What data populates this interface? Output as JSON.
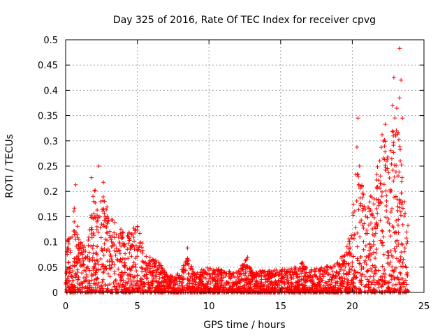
{
  "chart_data": {
    "type": "scatter",
    "title": "Day 325 of 2016, Rate Of TEC Index for receiver cpvg",
    "xlabel": "GPS time / hours",
    "ylabel": "ROTI / TECUs",
    "xlim": [
      0,
      25
    ],
    "ylim": [
      0,
      0.5
    ],
    "x_ticks": [
      "0",
      "5",
      "10",
      "15",
      "20",
      "25"
    ],
    "y_ticks": [
      "0",
      "0.05",
      "0.1",
      "0.15",
      "0.2",
      "0.25",
      "0.3",
      "0.35",
      "0.4",
      "0.45",
      "0.5"
    ],
    "grid": true,
    "marker": "+",
    "color": "#ff0000",
    "envelope": {
      "x": [
        0,
        0.3,
        0.6,
        1.0,
        1.5,
        2.0,
        2.3,
        2.6,
        3.0,
        3.5,
        4.0,
        4.5,
        5.0,
        5.5,
        6.0,
        6.5,
        7.0,
        7.5,
        8.0,
        8.5,
        9.0,
        10.0,
        11.0,
        12.0,
        12.7,
        13.0,
        14.0,
        15.0,
        16.0,
        16.5,
        17.0,
        18.0,
        19.0,
        19.5,
        20.0,
        20.3,
        20.6,
        21.0,
        21.5,
        22.0,
        22.3,
        22.6,
        23.0,
        23.3,
        23.6,
        23.9
      ],
      "y": [
        0.09,
        0.13,
        0.17,
        0.1,
        0.09,
        0.22,
        0.15,
        0.23,
        0.15,
        0.14,
        0.12,
        0.12,
        0.14,
        0.08,
        0.07,
        0.06,
        0.04,
        0.035,
        0.04,
        0.07,
        0.04,
        0.05,
        0.045,
        0.04,
        0.07,
        0.04,
        0.045,
        0.045,
        0.05,
        0.06,
        0.045,
        0.05,
        0.06,
        0.08,
        0.13,
        0.33,
        0.22,
        0.18,
        0.2,
        0.3,
        0.35,
        0.27,
        0.4,
        0.32,
        0.2,
        0.15
      ],
      "peaks": [
        {
          "x": 23.3,
          "y": 0.483
        },
        {
          "x": 22.9,
          "y": 0.425
        },
        {
          "x": 23.4,
          "y": 0.42
        },
        {
          "x": 23.3,
          "y": 0.385
        },
        {
          "x": 22.8,
          "y": 0.37
        },
        {
          "x": 23.5,
          "y": 0.345
        },
        {
          "x": 20.4,
          "y": 0.345
        },
        {
          "x": 2.3,
          "y": 0.25
        },
        {
          "x": 1.8,
          "y": 0.227
        },
        {
          "x": 0.7,
          "y": 0.213
        },
        {
          "x": 8.5,
          "y": 0.088
        },
        {
          "x": 12.7,
          "y": 0.07
        }
      ]
    }
  }
}
